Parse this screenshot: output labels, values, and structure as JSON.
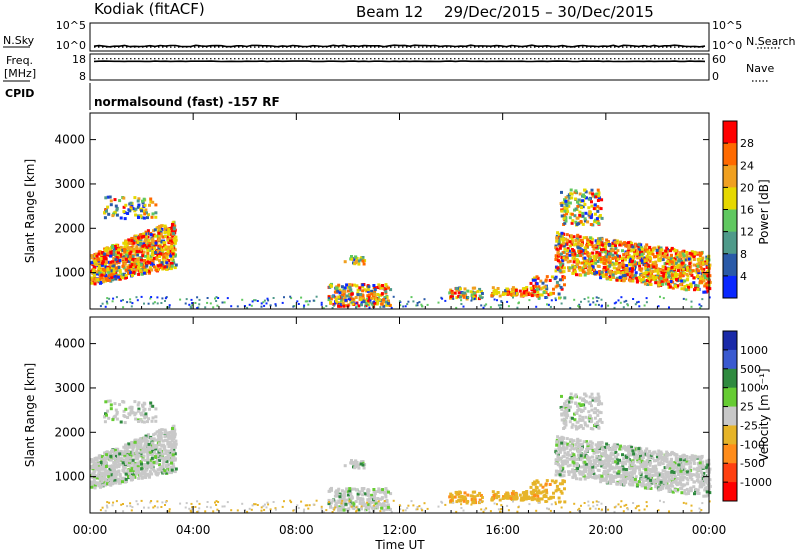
{
  "header": {
    "station": "Kodiak (fitACF)",
    "beam": "Beam 12",
    "dates": "29/Dec/2015 – 30/Dec/2015"
  },
  "left_labels": {
    "nsky": "N.Sky",
    "freq_line1": "Freq.",
    "freq_line2": "[MHz]",
    "cpid": "CPID"
  },
  "right_labels": {
    "nsearch": "N.Search",
    "nave": "Nave"
  },
  "cpid_text": "normalsound (fast) -157 RF",
  "chart_data": [
    {
      "type": "line",
      "name": "noise-panel",
      "left_ticks": [
        "10^5",
        "10^0"
      ],
      "right_ticks": [
        "10^5",
        "10^0"
      ],
      "series": [
        {
          "name": "N.Sky",
          "style": "solid",
          "level": 0.82
        },
        {
          "name": "N.Search",
          "style": "dotted",
          "level": 0.86
        }
      ]
    },
    {
      "type": "line",
      "name": "frequency-panel",
      "left_ticks": [
        "18",
        "8"
      ],
      "right_ticks": [
        "60",
        "0"
      ],
      "series": [
        {
          "name": "Freq.",
          "style": "solid",
          "level": 0.28
        },
        {
          "name": "Nave",
          "style": "dotted",
          "level": 0.18
        }
      ]
    },
    {
      "type": "heatmap",
      "name": "power-panel",
      "ylabel": "Slant Range [km]",
      "yticks": [
        1000,
        2000,
        3000,
        4000
      ],
      "ylim": [
        180,
        4600
      ],
      "colorbar": {
        "label": "Power [dB]",
        "ticks": [
          "28",
          "24",
          "20",
          "16",
          "12",
          "8",
          "4"
        ],
        "colors": [
          "#ff0000",
          "#ff6a00",
          "#f0a020",
          "#e6d800",
          "#60c860",
          "#4f9a8a",
          "#2a5aa8",
          "#0a28ff"
        ]
      },
      "features": [
        {
          "t0": 0.0,
          "t1": 3.2,
          "r0": 700,
          "r1": 2200,
          "level": "high"
        },
        {
          "t0": 9.5,
          "t1": 11.5,
          "r0": 300,
          "r1": 900,
          "level": "mid"
        },
        {
          "t0": 14.0,
          "t1": 17.5,
          "r0": 300,
          "r1": 800,
          "level": "mid"
        },
        {
          "t0": 18.0,
          "t1": 24.0,
          "r0": 600,
          "r1": 2900,
          "level": "high"
        }
      ]
    },
    {
      "type": "heatmap",
      "name": "velocity-panel",
      "ylabel": "Slant Range [km]",
      "yticks": [
        1000,
        2000,
        3000,
        4000
      ],
      "ylim": [
        180,
        4600
      ],
      "colorbar": {
        "label": "Velocity [m s⁻¹]",
        "ticks": [
          "1000",
          "500",
          "100",
          "25",
          "-25",
          "-100",
          "-500",
          "-1000"
        ],
        "colors": [
          "#1a2aa8",
          "#3a5ad0",
          "#2f8a3f",
          "#66cc33",
          "#c8c8c8",
          "#e6b428",
          "#ff8c1a",
          "#ff4010",
          "#ff0000"
        ]
      }
    }
  ],
  "x_axis": {
    "label": "Time UT",
    "ticks": [
      "00:00",
      "04:00",
      "08:00",
      "12:00",
      "16:00",
      "20:00",
      "00:00"
    ],
    "range_hours": [
      0,
      24
    ]
  }
}
